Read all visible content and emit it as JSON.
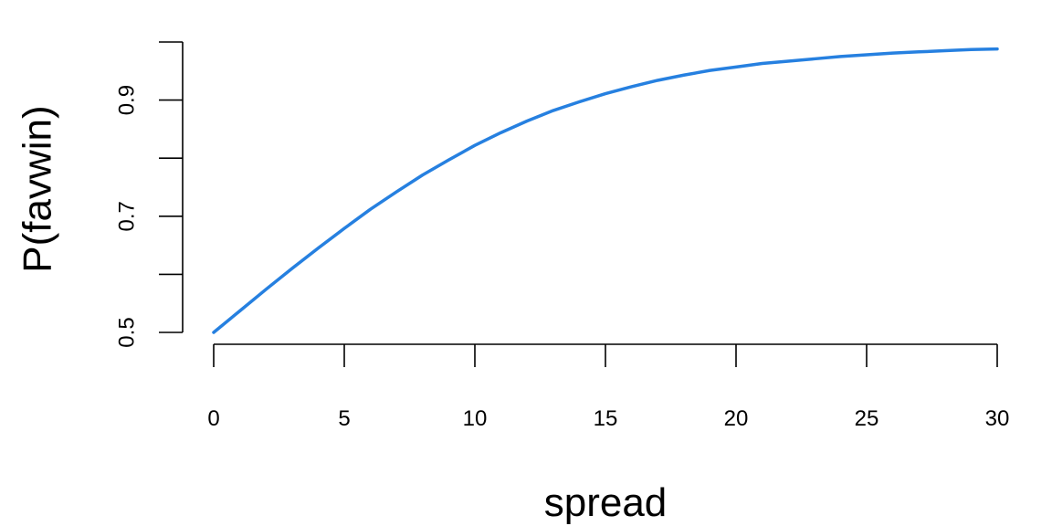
{
  "chart_data": {
    "type": "line",
    "title": "",
    "xlabel": "spread",
    "ylabel": "P(favwin)",
    "xlim": [
      0,
      30
    ],
    "ylim": [
      0.5,
      1.0
    ],
    "x_ticks": [
      0,
      5,
      10,
      15,
      20,
      25,
      30
    ],
    "x_tick_labels": [
      "0",
      "5",
      "10",
      "15",
      "20",
      "25",
      "30"
    ],
    "y_ticks": [
      0.5,
      0.6,
      0.7,
      0.8,
      0.9,
      1.0
    ],
    "y_tick_labels": [
      "0.5",
      "",
      "0.7",
      "",
      "0.9",
      ""
    ],
    "grid": false,
    "series": [
      {
        "color": "#2680e0",
        "x": [
          0,
          1,
          2,
          3,
          4,
          5,
          6,
          7,
          8,
          9,
          10,
          11,
          12,
          13,
          14,
          15,
          16,
          17,
          18,
          19,
          20,
          21,
          22,
          23,
          24,
          25,
          26,
          27,
          28,
          29,
          30
        ],
        "y": [
          0.5,
          0.537,
          0.574,
          0.61,
          0.645,
          0.679,
          0.712,
          0.742,
          0.771,
          0.797,
          0.822,
          0.844,
          0.864,
          0.882,
          0.897,
          0.911,
          0.923,
          0.934,
          0.943,
          0.951,
          0.957,
          0.963,
          0.967,
          0.971,
          0.975,
          0.978,
          0.981,
          0.983,
          0.985,
          0.987,
          0.988
        ]
      }
    ]
  }
}
